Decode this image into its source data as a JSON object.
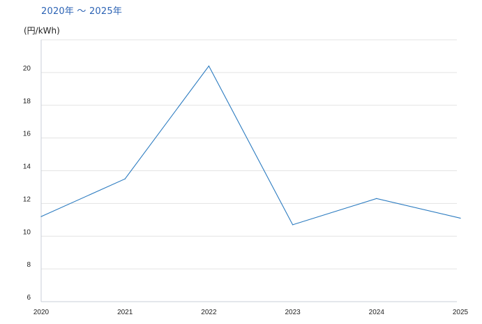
{
  "chart_data": {
    "type": "line",
    "title": "2020年 〜 2025年",
    "unit_label": "(円/kWh)",
    "xlabel": "",
    "ylabel": "",
    "x": [
      "2020",
      "2021",
      "2022",
      "2023",
      "2024",
      "2025"
    ],
    "series": [
      {
        "values": [
          11.2,
          13.5,
          20.4,
          10.7,
          12.3,
          11.1
        ],
        "color": "#2b7bc0"
      }
    ],
    "yticks": [
      6,
      8,
      10,
      12,
      14,
      16,
      18,
      20
    ],
    "ylim": [
      6,
      22
    ],
    "grid": true,
    "legend": "none"
  },
  "colors": {
    "title": "#2c63b4",
    "line": "#2b7bc0",
    "grid": "#e3e3e3",
    "axis": "#c9cfd8",
    "text": "#222222"
  }
}
